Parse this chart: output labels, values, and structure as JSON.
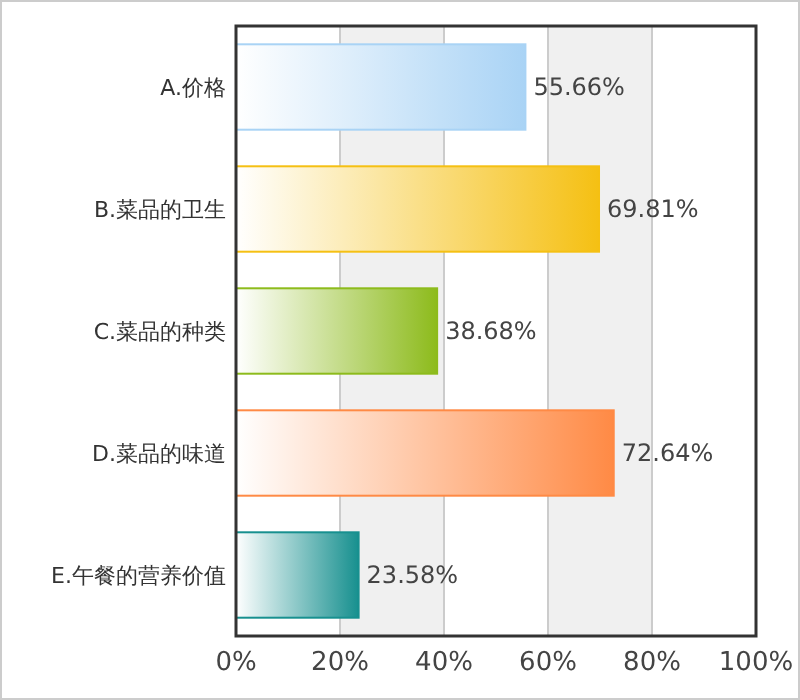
{
  "chart_data": {
    "type": "bar",
    "orientation": "horizontal",
    "categories": [
      "A.价格",
      "B.菜品的卫生",
      "C.菜品的种类",
      "D.菜品的味道",
      "E.午餐的营养价值"
    ],
    "values": [
      55.66,
      69.81,
      38.68,
      72.64,
      23.58
    ],
    "colors": [
      "#a9d3f5",
      "#f5c013",
      "#8dbb1c",
      "#ff8a45",
      "#17908f"
    ],
    "value_labels": [
      "55.66%",
      "69.81%",
      "38.68%",
      "72.64%",
      "23.58%"
    ],
    "xlim": [
      0,
      100
    ],
    "xticks": [
      {
        "value": 0,
        "label": "0%"
      },
      {
        "value": 20,
        "label": "20%"
      },
      {
        "value": 40,
        "label": "40%"
      },
      {
        "value": 60,
        "label": "60%"
      },
      {
        "value": 80,
        "label": "80%"
      },
      {
        "value": 100,
        "label": "100%"
      }
    ],
    "grid": "x"
  }
}
